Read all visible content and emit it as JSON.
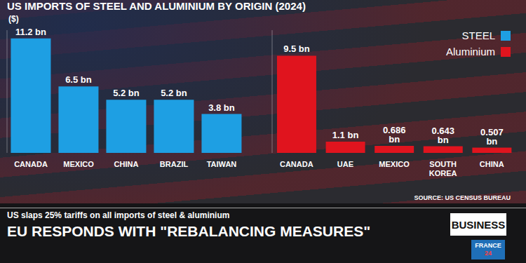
{
  "title": "US IMPORTS OF STEEL AND ALUMINIUM BY ORIGIN (2024)",
  "source": "SOURCE: US CENSUS BUREAU",
  "headline": "US slaps 25% tariffs on all imports of steel & aluminium",
  "subheadline": "EU RESPONDS WITH \"REBALANCING MEASURES\"",
  "section": "BUSINESS",
  "logo": "FRANCE 24",
  "chart_data": [
    {
      "type": "bar",
      "ylabel": "($)",
      "categories": [
        "CANADA",
        "MEXICO",
        "CHINA",
        "BRAZIL",
        "TAIWAN"
      ],
      "series": [
        {
          "name": "STEEL",
          "color": "#1e9fe3",
          "values": [
            11.2,
            6.5,
            5.2,
            5.2,
            3.8
          ],
          "value_labels": [
            "11.2 bn",
            "6.5 bn",
            "5.2 bn",
            "5.2 bn",
            "3.8 bn"
          ]
        }
      ],
      "ylim": [
        0,
        12
      ],
      "data_labels": true,
      "tick_labels": "x",
      "legend": "upper right"
    },
    {
      "type": "bar",
      "categories": [
        "CANADA",
        "UAE",
        "MEXICO",
        "SOUTH KOREA",
        "CHINA"
      ],
      "series": [
        {
          "name": "Aluminium",
          "color": "#e0141e",
          "values": [
            9.5,
            1.1,
            0.686,
            0.643,
            0.507
          ],
          "value_labels": [
            "9.5 bn",
            "1.1 bn",
            "0.686 bn",
            "0.643 bn",
            "0.507 bn"
          ]
        }
      ],
      "ylim": [
        0,
        12
      ],
      "data_labels": true,
      "tick_labels": "x",
      "legend": "upper right"
    }
  ]
}
